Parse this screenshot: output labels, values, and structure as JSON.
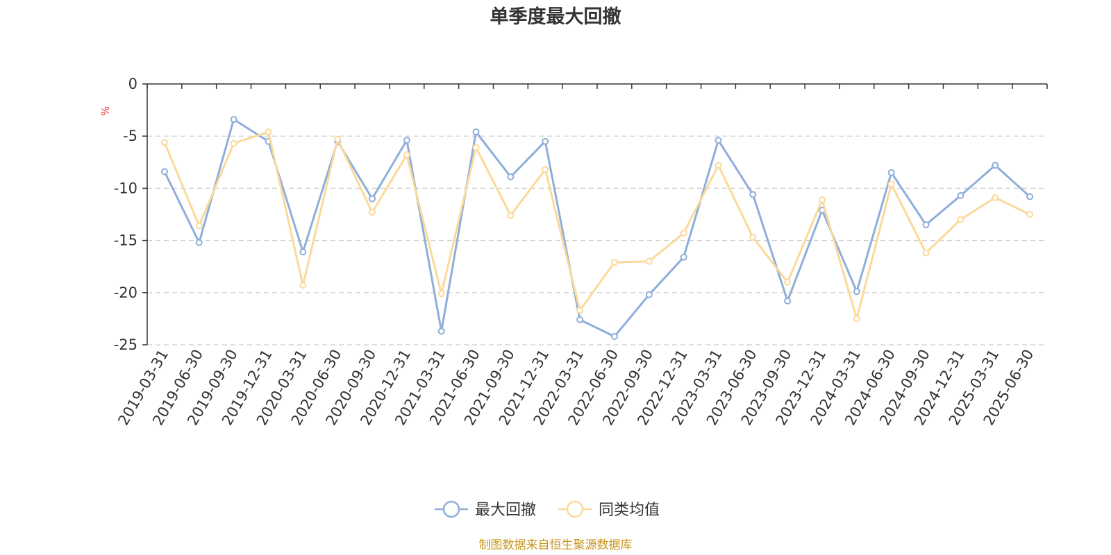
{
  "chart_data": {
    "type": "line",
    "title": "单季度最大回撤",
    "ylabel": "%",
    "ylim": [
      -25,
      0
    ],
    "yticks": [
      0,
      -5,
      -10,
      -15,
      -20,
      -25
    ],
    "grid": true,
    "legend_position": "bottom-center",
    "categories": [
      "2019-03-31",
      "2019-06-30",
      "2019-09-30",
      "2019-12-31",
      "2020-03-31",
      "2020-06-30",
      "2020-09-30",
      "2020-12-31",
      "2021-03-31",
      "2021-06-30",
      "2021-09-30",
      "2021-12-31",
      "2022-03-31",
      "2022-06-30",
      "2022-09-30",
      "2022-12-31",
      "2023-03-31",
      "2023-06-30",
      "2023-09-30",
      "2023-12-31",
      "2024-03-31",
      "2024-06-30",
      "2024-09-30",
      "2024-12-31",
      "2025-03-31",
      "2025-06-30"
    ],
    "series": [
      {
        "name": "最大回撤",
        "color": "#8eaedb",
        "values": [
          -8.4,
          -15.2,
          -3.4,
          -5.5,
          -16.1,
          -5.5,
          -11.0,
          -5.4,
          -23.7,
          -4.6,
          -8.9,
          -5.5,
          -22.6,
          -24.2,
          -20.2,
          -16.6,
          -5.4,
          -10.6,
          -20.8,
          -12.1,
          -19.9,
          -8.5,
          -13.5,
          -10.7,
          -7.8,
          -10.8
        ]
      },
      {
        "name": "同类均值",
        "color": "#fbd99a",
        "values": [
          -5.6,
          -13.6,
          -5.7,
          -4.6,
          -19.3,
          -5.3,
          -12.3,
          -6.8,
          -20.1,
          -6.1,
          -12.6,
          -8.2,
          -21.7,
          -17.1,
          -17.0,
          -14.3,
          -7.8,
          -14.7,
          -19.0,
          -11.1,
          -22.5,
          -9.6,
          -16.2,
          -13.0,
          -10.9,
          -12.5
        ]
      }
    ]
  },
  "colors": {
    "unit_label": "#e53935",
    "source": "#c8961e",
    "axis": "#333333",
    "grid": "#cccccc"
  },
  "source_note": "制图数据来自恒生聚源数据库"
}
